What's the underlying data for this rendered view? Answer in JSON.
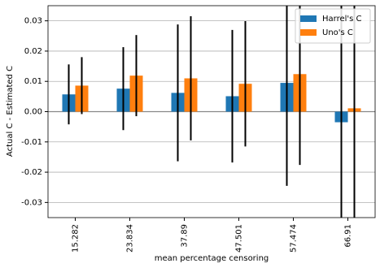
{
  "chart_data": {
    "type": "bar",
    "x_label": "mean percentage censoring",
    "y_label": "Actual C - Estimated C",
    "categories": [
      "15.282",
      "23.834",
      "37.89",
      "47.501",
      "57.474",
      "66.91"
    ],
    "series": [
      {
        "name": "Harrel's C",
        "color": "#1f77b4",
        "values": [
          0.0057,
          0.0076,
          0.0062,
          0.0051,
          0.0095,
          -0.0035
        ],
        "error": [
          0.0099,
          0.0137,
          0.0226,
          0.0219,
          0.034,
          0.045
        ]
      },
      {
        "name": "Uno's C",
        "color": "#ff7f0e",
        "values": [
          0.0086,
          0.0119,
          0.011,
          0.0092,
          0.0124,
          0.0011
        ],
        "error": [
          0.0094,
          0.0134,
          0.0205,
          0.0207,
          0.03,
          0.04
        ]
      }
    ],
    "ylim": [
      -0.035,
      0.035
    ],
    "yticks": [
      -0.03,
      -0.02,
      -0.01,
      {
        "value": 0,
        "label": "0.00"
      },
      0.01,
      0.02,
      0.03
    ],
    "grid": true,
    "legend": "upper-right"
  }
}
